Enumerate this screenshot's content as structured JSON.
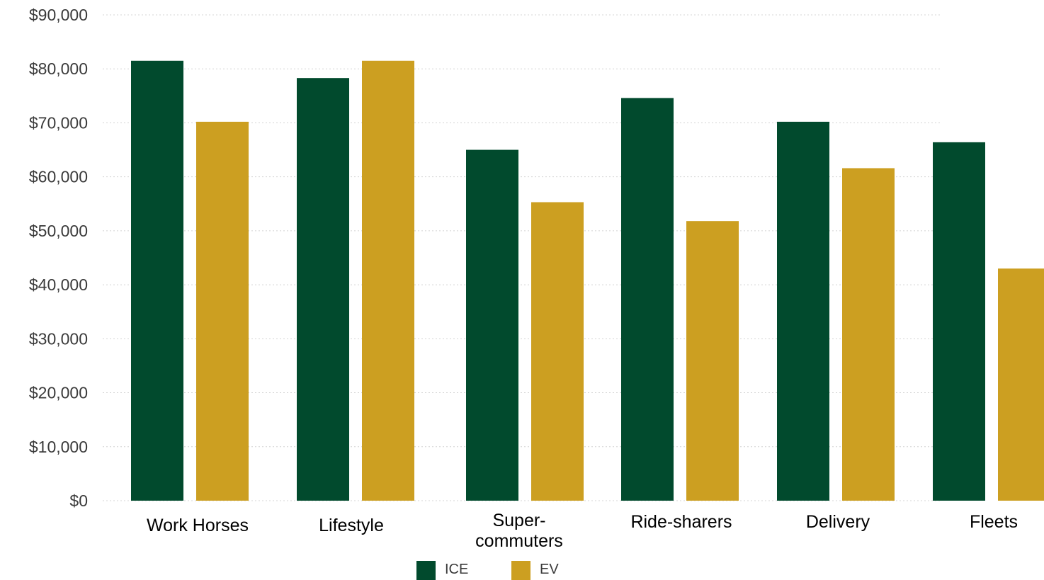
{
  "chart_data": {
    "type": "bar",
    "categories": [
      [
        "Work Horses"
      ],
      [
        "Lifestyle"
      ],
      [
        "Super-",
        "commuters"
      ],
      [
        "Ride-sharers"
      ],
      [
        "Delivery"
      ],
      [
        "Fleets"
      ]
    ],
    "series": [
      {
        "name": "ICE",
        "color": "#014a2d",
        "values": [
          81500,
          78300,
          65000,
          74600,
          70200,
          66400
        ]
      },
      {
        "name": "EV",
        "color": "#cc9f21",
        "values": [
          70200,
          81500,
          55300,
          51800,
          61600,
          43000
        ]
      }
    ],
    "y_ticks": [
      "$0",
      "$10,000",
      "$20,000",
      "$30,000",
      "$40,000",
      "$50,000",
      "$60,000",
      "$70,000",
      "$80,000",
      "$90,000"
    ],
    "ylim": [
      0,
      90000
    ],
    "grid": true,
    "legend_position": "bottom"
  }
}
